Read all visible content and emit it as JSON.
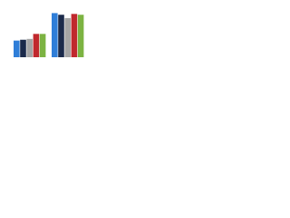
{
  "chart_data": {
    "type": "bar",
    "categories": [
      null,
      null
    ],
    "series": [
      {
        "color": "#2f7ed8",
        "values": [
          20,
          53
        ]
      },
      {
        "color": "#1b2a4a",
        "values": [
          21,
          51
        ]
      },
      {
        "color": "#a5a5a5",
        "values": [
          22,
          47
        ]
      },
      {
        "color": "#c0282d",
        "values": [
          28,
          52
        ]
      },
      {
        "color": "#7cb342",
        "values": [
          28,
          51
        ]
      }
    ],
    "ylim": [
      0,
      60
    ]
  }
}
